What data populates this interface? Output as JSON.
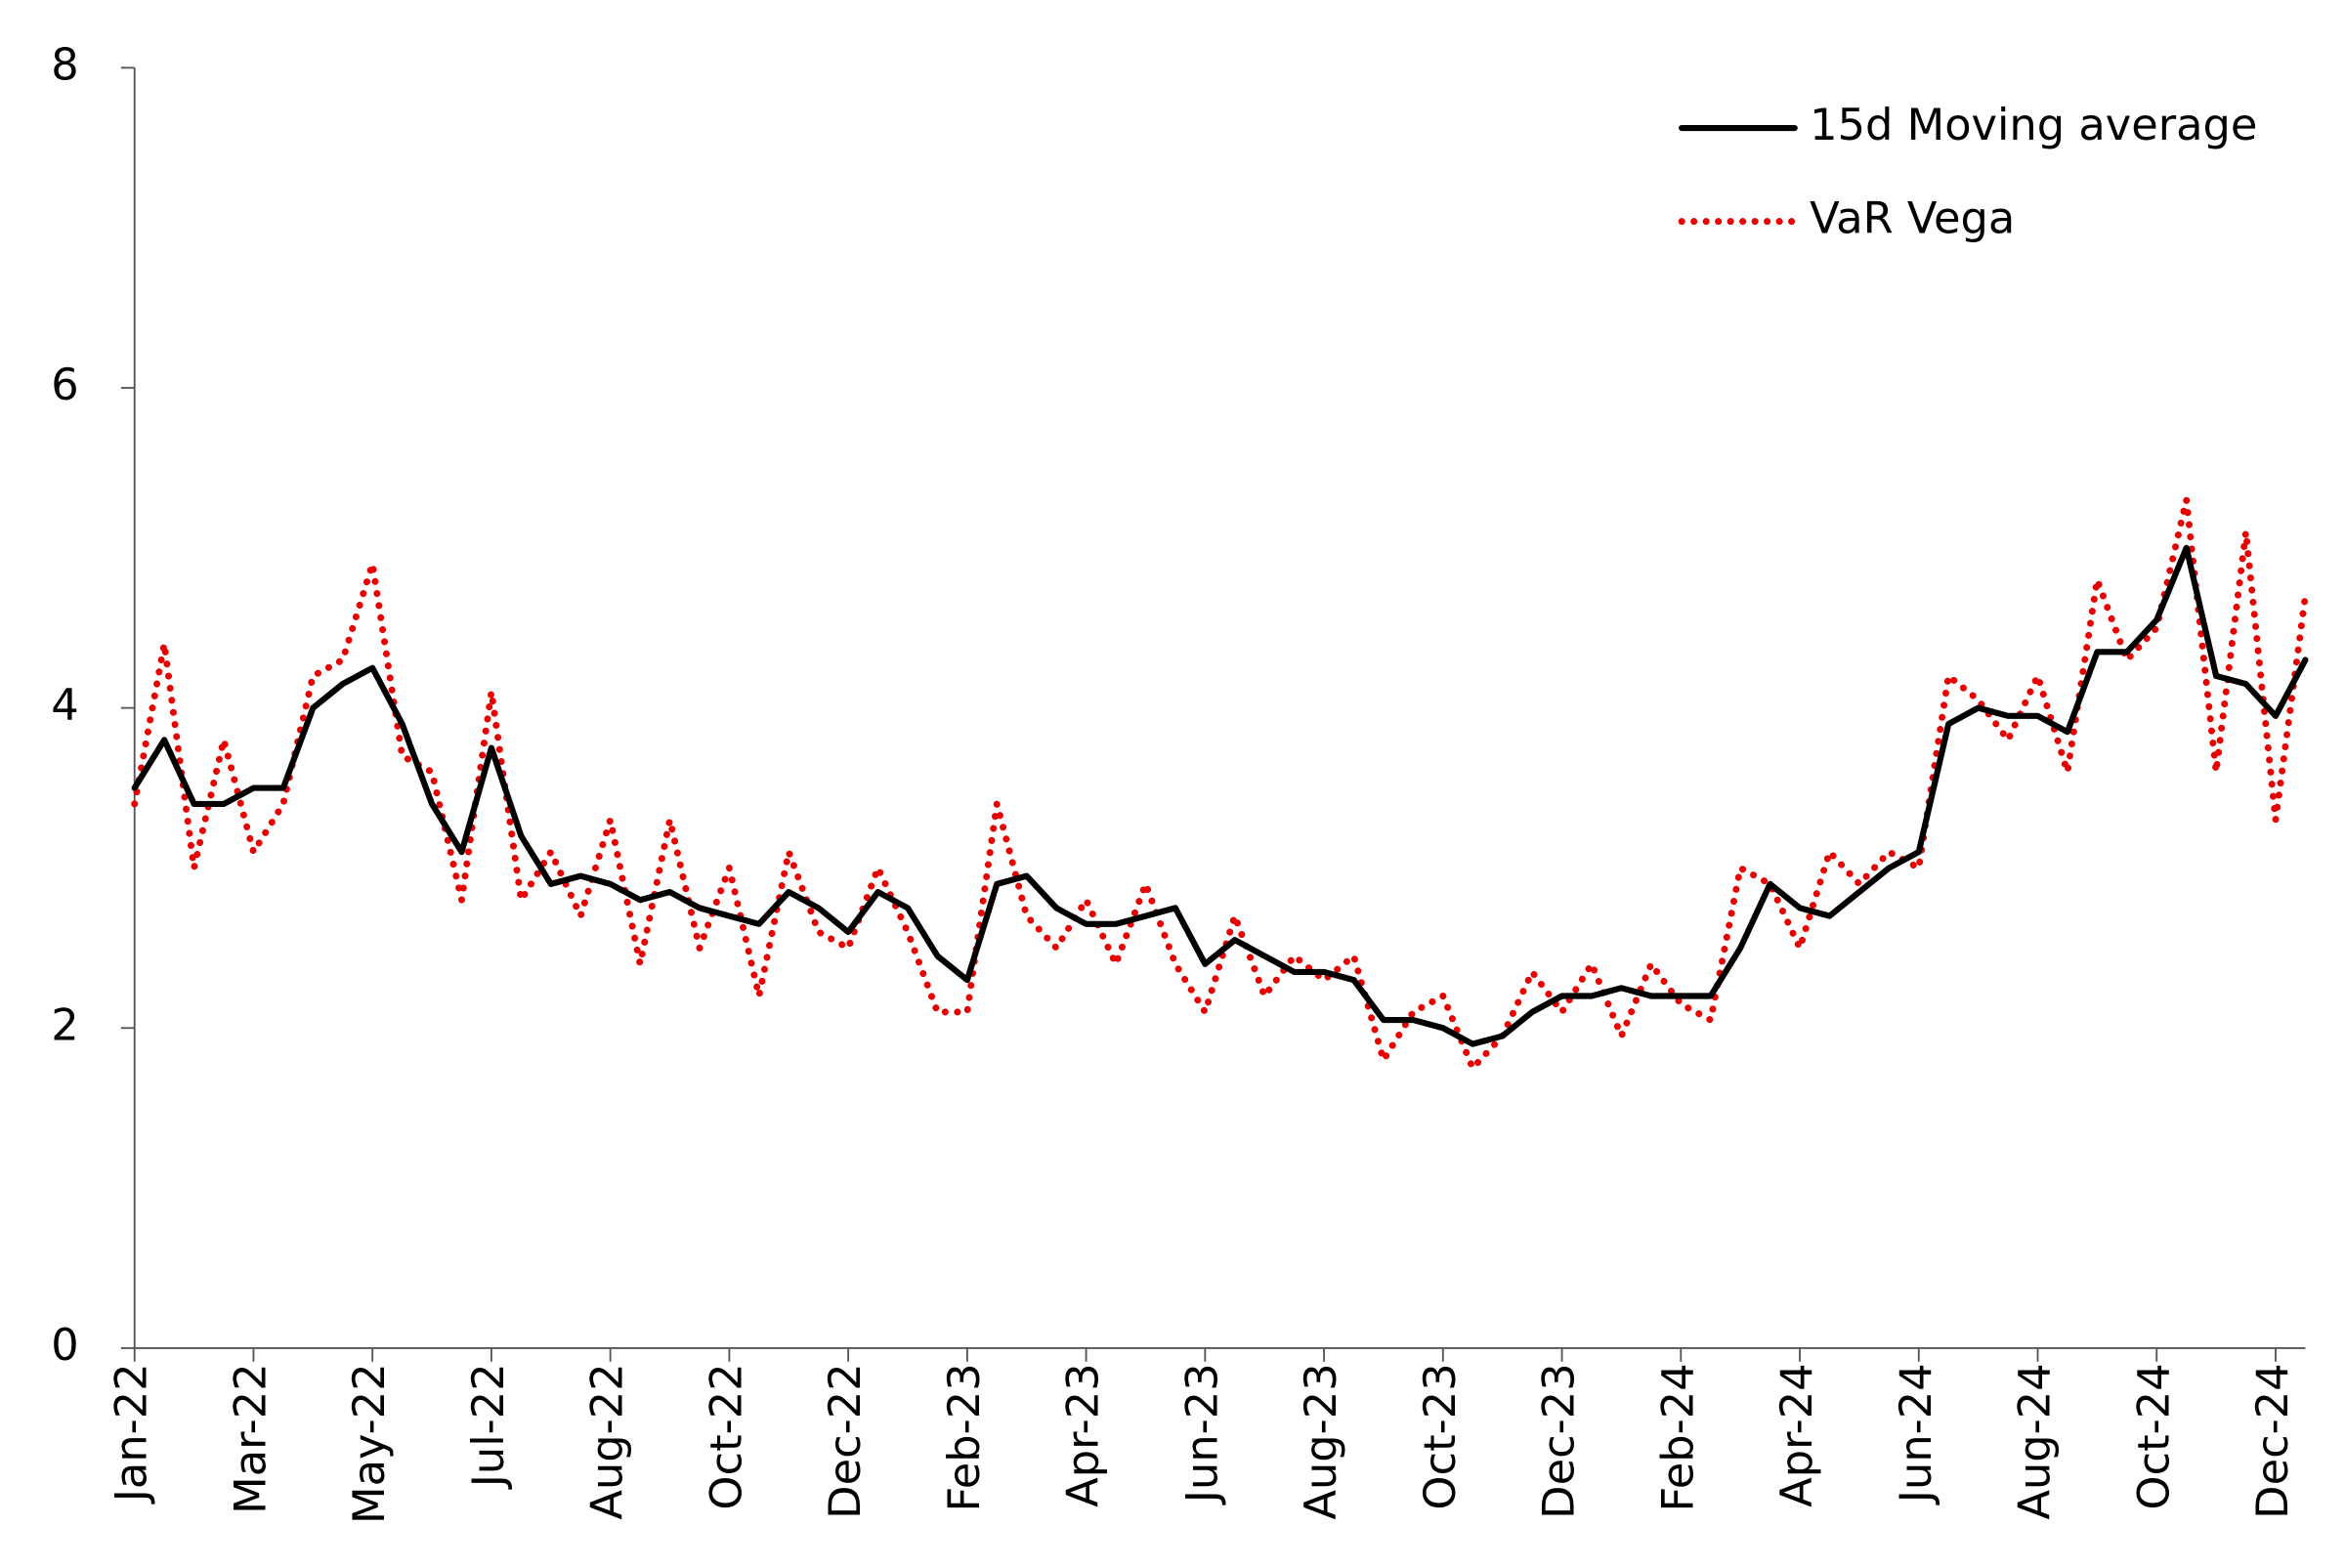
{
  "chart_data": {
    "type": "line",
    "categories": [
      "Jan-22",
      null,
      null,
      null,
      "Mar-22",
      null,
      null,
      null,
      "May-22",
      null,
      null,
      null,
      "Jul-22",
      null,
      null,
      null,
      "Aug-22",
      null,
      null,
      null,
      "Oct-22",
      null,
      null,
      null,
      "Dec-22",
      null,
      null,
      null,
      "Feb-23",
      null,
      null,
      null,
      "Apr-23",
      null,
      null,
      null,
      "Jun-23",
      null,
      null,
      null,
      "Aug-23",
      null,
      null,
      null,
      "Oct-23",
      null,
      null,
      null,
      "Dec-23",
      null,
      null,
      null,
      "Feb-24",
      null,
      null,
      null,
      "Apr-24",
      null,
      null,
      null,
      "Jun-24",
      null,
      null,
      null,
      "Aug-24",
      null,
      null,
      null,
      "Oct-24",
      null,
      null,
      null,
      "Dec-24",
      null
    ],
    "series": [
      {
        "name": "15d Moving average",
        "color": "#000000",
        "style": "solid",
        "values": [
          3.5,
          3.8,
          3.4,
          3.4,
          3.5,
          3.5,
          4.0,
          4.15,
          4.25,
          3.9,
          3.4,
          3.1,
          3.75,
          3.2,
          2.9,
          2.95,
          2.9,
          2.8,
          2.85,
          2.75,
          2.7,
          2.65,
          2.85,
          2.75,
          2.6,
          2.85,
          2.75,
          2.45,
          2.3,
          2.9,
          2.95,
          2.75,
          2.65,
          2.65,
          2.7,
          2.75,
          2.4,
          2.55,
          2.45,
          2.35,
          2.35,
          2.3,
          2.05,
          2.05,
          2.0,
          1.9,
          1.95,
          2.1,
          2.2,
          2.2,
          2.25,
          2.2,
          2.2,
          2.2,
          2.5,
          2.9,
          2.75,
          2.7,
          2.85,
          3.0,
          3.1,
          3.9,
          4.0,
          3.95,
          3.95,
          3.85,
          4.35,
          4.35,
          4.55,
          5.0,
          4.2,
          4.15,
          3.95,
          4.3
        ]
      },
      {
        "name": "VaR Vega",
        "color": "#e60000",
        "style": "dotted",
        "values": [
          3.4,
          4.4,
          3.0,
          3.8,
          3.1,
          3.4,
          4.2,
          4.3,
          4.9,
          3.7,
          3.6,
          2.8,
          4.1,
          2.8,
          3.1,
          2.7,
          3.3,
          2.4,
          3.3,
          2.5,
          3.0,
          2.2,
          3.1,
          2.6,
          2.5,
          3.0,
          2.6,
          2.1,
          2.1,
          3.4,
          2.7,
          2.5,
          2.8,
          2.4,
          2.9,
          2.4,
          2.1,
          2.7,
          2.2,
          2.45,
          2.3,
          2.45,
          1.8,
          2.1,
          2.2,
          1.75,
          1.95,
          2.35,
          2.1,
          2.4,
          1.95,
          2.4,
          2.15,
          2.05,
          3.0,
          2.9,
          2.5,
          3.1,
          2.9,
          3.1,
          3.0,
          4.2,
          4.05,
          3.8,
          4.2,
          3.6,
          4.8,
          4.3,
          4.5,
          5.3,
          3.6,
          5.1,
          3.3,
          4.7
        ]
      }
    ],
    "ylim": [
      0,
      8
    ],
    "yticks": [
      0,
      2,
      4,
      6,
      8
    ],
    "grid": false,
    "legend": "upper right"
  }
}
